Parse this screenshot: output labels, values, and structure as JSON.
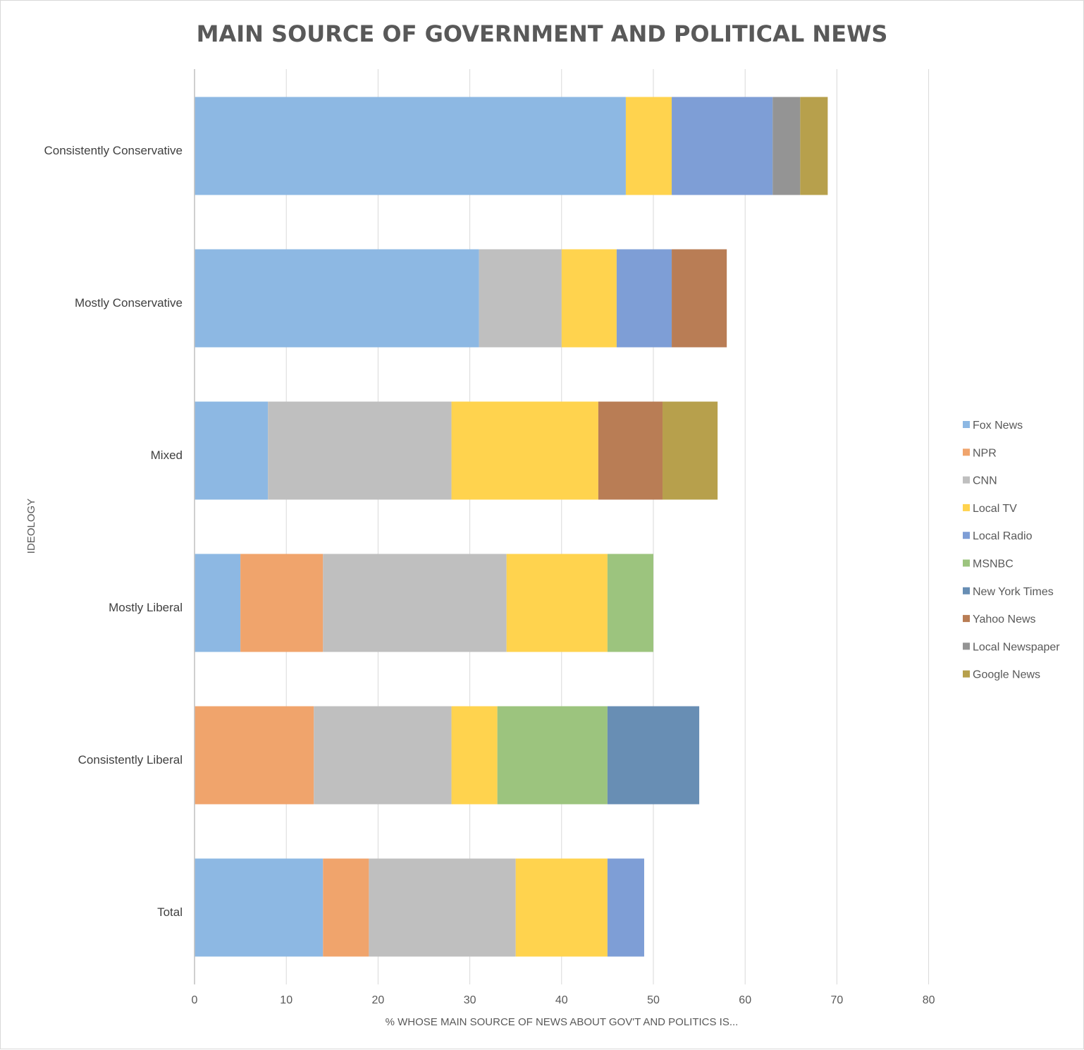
{
  "chart_data": {
    "type": "bar",
    "orientation": "horizontal",
    "stacked": true,
    "title": "MAIN SOURCE OF GOVERNMENT AND POLITICAL NEWS",
    "xlabel": "% WHOSE MAIN SOURCE OF NEWS ABOUT GOV'T AND POLITICS IS...",
    "ylabel": "IDEOLOGY",
    "xlim": [
      0,
      80
    ],
    "xticks": [
      0,
      10,
      20,
      30,
      40,
      50,
      60,
      70,
      80
    ],
    "grid": true,
    "legend_position": "right",
    "categories": [
      "Consistently Conservative",
      "Mostly Conservative",
      "Mixed",
      "Mostly Liberal",
      "Consistently Liberal",
      "Total"
    ],
    "series": [
      {
        "name": "Fox News",
        "color": "#8DB8E3",
        "values": [
          47,
          31,
          8,
          5,
          0,
          14
        ]
      },
      {
        "name": "NPR",
        "color": "#F0A46C",
        "values": [
          0,
          0,
          0,
          9,
          13,
          5
        ]
      },
      {
        "name": "CNN",
        "color": "#BFBFBF",
        "values": [
          0,
          9,
          20,
          20,
          15,
          16
        ]
      },
      {
        "name": "Local TV",
        "color": "#FFD34E",
        "values": [
          5,
          6,
          16,
          11,
          5,
          10
        ]
      },
      {
        "name": "Local Radio",
        "color": "#7E9ED6",
        "values": [
          11,
          6,
          0,
          0,
          0,
          4
        ]
      },
      {
        "name": "MSNBC",
        "color": "#9CC47E",
        "values": [
          0,
          0,
          0,
          5,
          12,
          0
        ]
      },
      {
        "name": "New York Times",
        "color": "#688EB4",
        "values": [
          0,
          0,
          0,
          0,
          10,
          0
        ]
      },
      {
        "name": "Yahoo News",
        "color": "#B97D55",
        "values": [
          0,
          6,
          7,
          0,
          0,
          0
        ]
      },
      {
        "name": "Local Newspaper",
        "color": "#949494",
        "values": [
          3,
          0,
          0,
          0,
          0,
          0
        ]
      },
      {
        "name": "Google News",
        "color": "#B7A04C",
        "values": [
          3,
          0,
          6,
          0,
          0,
          0
        ]
      }
    ]
  }
}
